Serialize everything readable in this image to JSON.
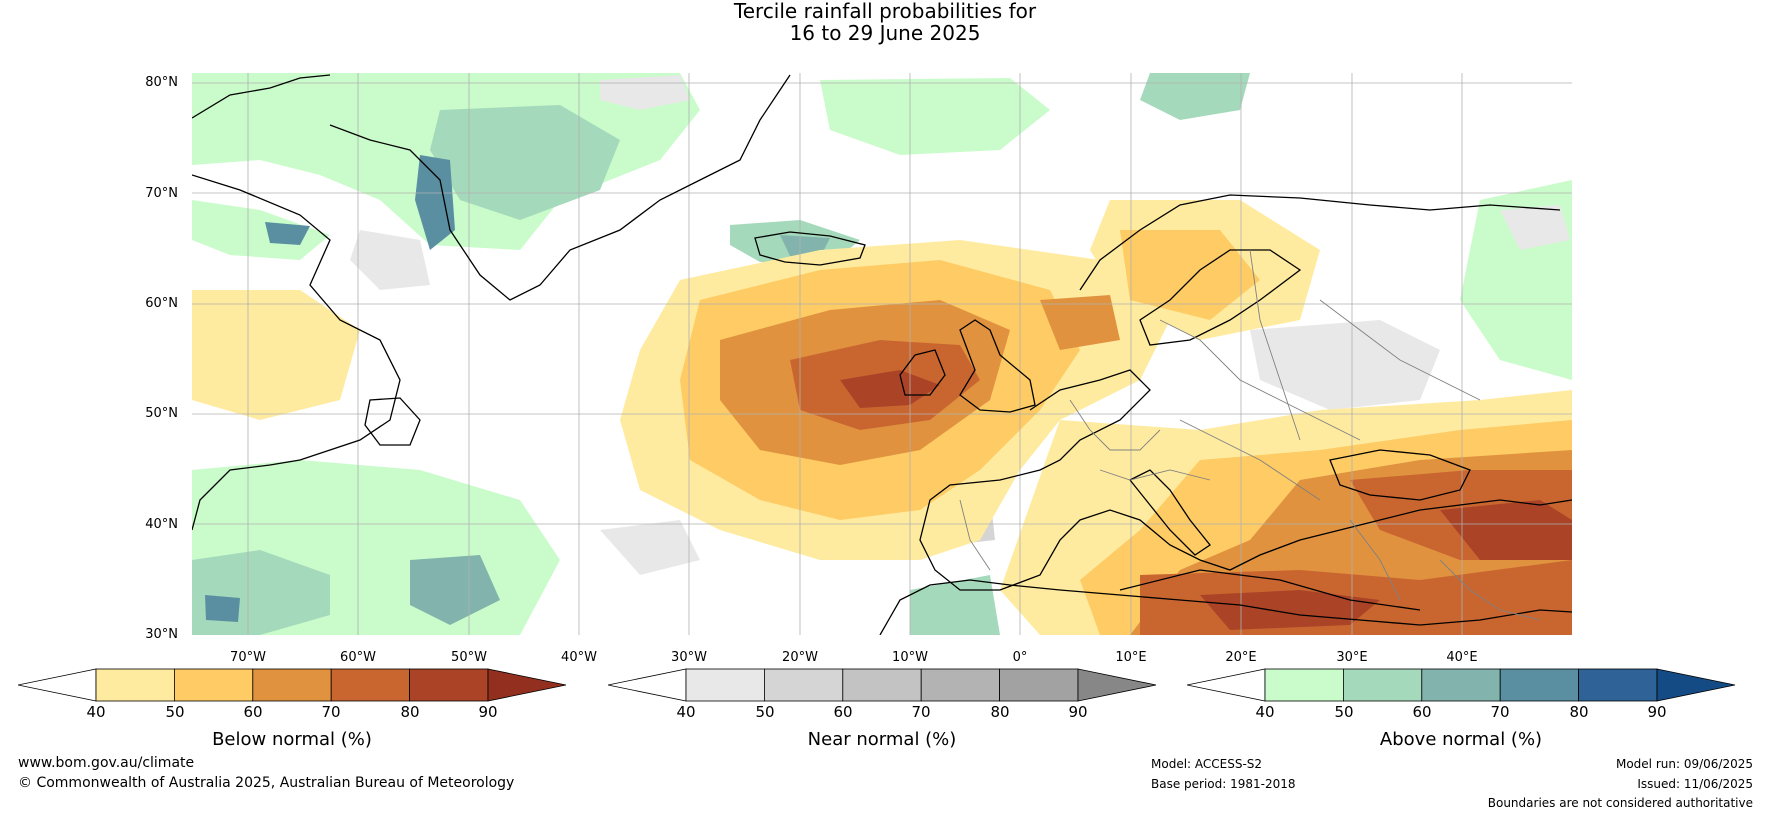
{
  "title": {
    "line1": "Tercile rainfall probabilities for",
    "line2": "16 to 29 June 2025"
  },
  "map": {
    "lat_labels": [
      "80°N",
      "70°N",
      "60°N",
      "50°N",
      "40°N",
      "30°N"
    ],
    "lon_labels": [
      "70°W",
      "60°W",
      "50°W",
      "40°W",
      "30°W",
      "20°W",
      "10°W",
      "0°",
      "10°E",
      "20°E",
      "30°E",
      "40°E"
    ],
    "colors": {
      "ocean_bg": "#ffffff",
      "grid": "#b0b0b0",
      "coast": "#000000",
      "border": "#808080"
    }
  },
  "colorbars": [
    {
      "title": "Below normal (%)",
      "ticks": [
        "40",
        "50",
        "60",
        "70",
        "80",
        "90"
      ],
      "colors": [
        "#ffffff",
        "#ffeb9f",
        "#fecb64",
        "#e0923f",
        "#c96630",
        "#ab4427",
        "#922f1e"
      ]
    },
    {
      "title": "Near normal (%)",
      "ticks": [
        "40",
        "50",
        "60",
        "70",
        "80",
        "90"
      ],
      "colors": [
        "#ffffff",
        "#e8e8e8",
        "#d5d5d5",
        "#c3c3c3",
        "#b3b3b3",
        "#a2a2a2",
        "#878787"
      ]
    },
    {
      "title": "Above normal (%)",
      "ticks": [
        "40",
        "50",
        "60",
        "70",
        "80",
        "90"
      ],
      "colors": [
        "#ffffff",
        "#c9fcca",
        "#a5d9bb",
        "#82b4ad",
        "#5a8fa2",
        "#2f6297",
        "#154b85"
      ]
    }
  ],
  "footer": {
    "site": "www.bom.gov.au/climate",
    "copyright": "© Commonwealth of Australia 2025, Australian Bureau of Meteorology",
    "model": "Model: ACCESS-S2",
    "base_period": "Base period: 1981-2018",
    "model_run": "Model run: 09/06/2025",
    "issued": "Issued: 11/06/2025",
    "disclaimer": "Boundaries are not considered authoritative"
  }
}
